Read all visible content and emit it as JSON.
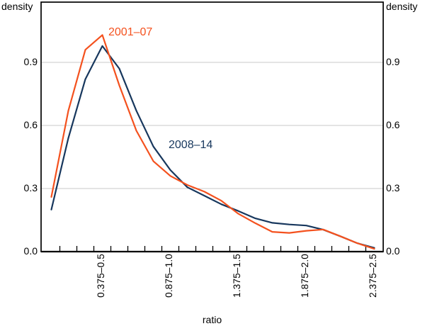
{
  "chart_data": {
    "type": "line",
    "title": "",
    "xlabel": "ratio",
    "ylabel_left": "density",
    "ylabel_right": "density",
    "xlim": [
      -0.013,
      2.503
    ],
    "ylim": [
      0,
      1.1865
    ],
    "grid": true,
    "legend_position": "inline-annotations",
    "colors": {
      "axis": "#000000",
      "grid": "#C8C8C8",
      "background": "#FFFFFF",
      "series_2001_07": "#F4511E",
      "series_2008_14": "#17375D"
    },
    "x": [
      0.0625,
      0.1875,
      0.3125,
      0.4375,
      0.5625,
      0.6875,
      0.8125,
      0.9375,
      1.0625,
      1.1875,
      1.3125,
      1.4375,
      1.5625,
      1.6875,
      1.8125,
      1.9375,
      2.0625,
      2.1875,
      2.3125,
      2.4375
    ],
    "series": [
      {
        "name": "2001–07",
        "color": "#F4511E",
        "values": [
          0.26,
          0.67,
          0.96,
          1.03,
          0.79,
          0.575,
          0.43,
          0.36,
          0.317,
          0.285,
          0.242,
          0.18,
          0.135,
          0.094,
          0.089,
          0.099,
          0.105,
          0.073,
          0.04,
          0.013
        ]
      },
      {
        "name": "2008–14",
        "color": "#17375D",
        "values": [
          0.2,
          0.54,
          0.82,
          0.978,
          0.87,
          0.67,
          0.5,
          0.388,
          0.306,
          0.266,
          0.225,
          0.193,
          0.158,
          0.137,
          0.129,
          0.124,
          0.104,
          0.073,
          0.04,
          0.018
        ]
      }
    ],
    "annotations": [
      {
        "text": "2001–07",
        "series": 0,
        "color": "#F4511E"
      },
      {
        "text": "2008–14",
        "series": 1,
        "color": "#17375D"
      }
    ],
    "yticks": [
      {
        "value": 0.0,
        "label": "0.0"
      },
      {
        "value": 0.3,
        "label": "0.3"
      },
      {
        "value": 0.6,
        "label": "0.6"
      },
      {
        "value": 0.9,
        "label": "0.9"
      }
    ],
    "gridlines": [
      0.3,
      0.6,
      0.9
    ],
    "xticks_minor": [
      0.125,
      0.25,
      0.375,
      0.5,
      0.625,
      0.75,
      0.875,
      1.0,
      1.125,
      1.25,
      1.375,
      1.5,
      1.625,
      1.75,
      1.875,
      2.0,
      2.125,
      2.25,
      2.375
    ],
    "xtick_labels": [
      {
        "pos": 0.4375,
        "label": "0.375–0.5"
      },
      {
        "pos": 0.9375,
        "label": "0.875–1.0"
      },
      {
        "pos": 1.4375,
        "label": "1.375–1.5"
      },
      {
        "pos": 1.9375,
        "label": "1.875–2.0"
      },
      {
        "pos": 2.4375,
        "label": "2.375–2.5"
      }
    ]
  }
}
